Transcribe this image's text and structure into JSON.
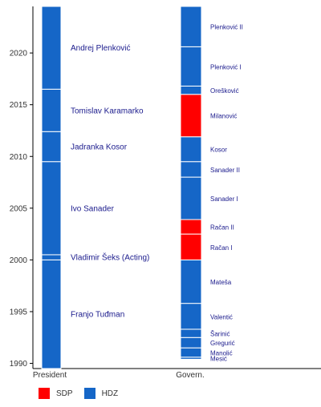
{
  "chart_data": {
    "type": "bar",
    "orientation": "vertical-timeline",
    "categories": [
      "President",
      "Govern."
    ],
    "ylim": [
      1989.5,
      2024.5
    ],
    "yticks": [
      1990,
      1995,
      2000,
      2005,
      2010,
      2015,
      2020
    ],
    "grid": false,
    "legend": {
      "placement": "bottom-left",
      "entries": [
        {
          "name": "SDP",
          "color": "#ff0000"
        },
        {
          "name": "HDZ",
          "color": "#1566c7"
        }
      ]
    },
    "series": [
      {
        "category": "President",
        "segments": [
          {
            "label": "Franjo Tuđman",
            "start": 1989.5,
            "end": 2000.0,
            "party": "HDZ"
          },
          {
            "label": "Vladimir Šeks (Acting)",
            "start": 2000.0,
            "end": 2000.5,
            "party": "HDZ"
          },
          {
            "label": "Ivo Sanader",
            "start": 2000.5,
            "end": 2009.5,
            "party": "HDZ"
          },
          {
            "label": "Jadranka Kosor",
            "start": 2009.5,
            "end": 2012.4,
            "party": "HDZ"
          },
          {
            "label": "Tomislav Karamarko",
            "start": 2012.4,
            "end": 2016.5,
            "party": "HDZ"
          },
          {
            "label": "Andrej Plenković",
            "start": 2016.5,
            "end": 2024.5,
            "party": "HDZ"
          }
        ]
      },
      {
        "category": "Govern.",
        "segments": [
          {
            "label": "Mesić",
            "start": 1990.4,
            "end": 1990.6,
            "party": "HDZ"
          },
          {
            "label": "Manolić",
            "start": 1990.6,
            "end": 1991.5,
            "party": "HDZ"
          },
          {
            "label": "Gregurić",
            "start": 1991.5,
            "end": 1992.5,
            "party": "HDZ"
          },
          {
            "label": "Šarinić",
            "start": 1992.5,
            "end": 1993.3,
            "party": "HDZ"
          },
          {
            "label": "Valentić",
            "start": 1993.3,
            "end": 1995.8,
            "party": "HDZ"
          },
          {
            "label": "Mateša",
            "start": 1995.8,
            "end": 2000.0,
            "party": "HDZ"
          },
          {
            "label": "Račan I",
            "start": 2000.0,
            "end": 2002.5,
            "party": "SDP"
          },
          {
            "label": "Račan II",
            "start": 2002.5,
            "end": 2003.9,
            "party": "SDP"
          },
          {
            "label": "Sanader I",
            "start": 2003.9,
            "end": 2008.0,
            "party": "HDZ"
          },
          {
            "label": "Sanader II",
            "start": 2008.0,
            "end": 2009.5,
            "party": "HDZ"
          },
          {
            "label": "Kosor",
            "start": 2009.5,
            "end": 2011.9,
            "party": "HDZ"
          },
          {
            "label": "Milanović",
            "start": 2011.9,
            "end": 2016.0,
            "party": "SDP"
          },
          {
            "label": "Orešković",
            "start": 2016.0,
            "end": 2016.8,
            "party": "HDZ"
          },
          {
            "label": "Plenković I",
            "start": 2016.8,
            "end": 2020.6,
            "party": "HDZ"
          },
          {
            "label": "Plenković II",
            "start": 2020.6,
            "end": 2024.5,
            "party": "HDZ"
          }
        ]
      }
    ]
  }
}
